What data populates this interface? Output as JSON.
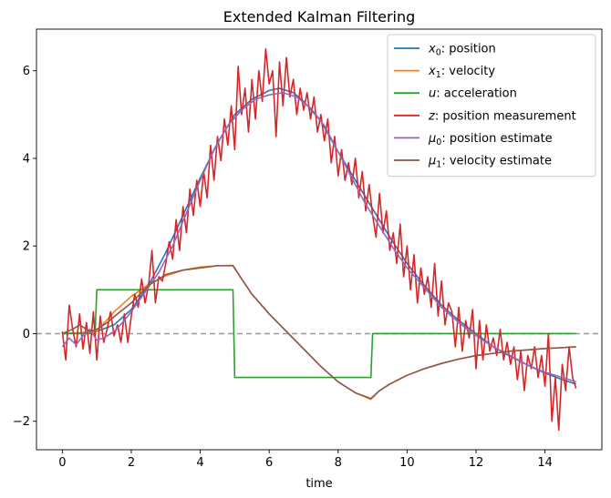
{
  "chart_data": {
    "type": "line",
    "title": "Extended Kalman Filtering",
    "xlabel": "time",
    "ylabel": "",
    "xlim": [
      -0.75,
      15.65
    ],
    "ylim": [
      -2.65,
      6.95
    ],
    "xticks": [
      0,
      2,
      4,
      6,
      8,
      10,
      12,
      14
    ],
    "yticks": [
      -2,
      0,
      2,
      4,
      6
    ],
    "xtick_labels": [
      "0",
      "2",
      "4",
      "6",
      "8",
      "10",
      "12",
      "14"
    ],
    "ytick_labels": [
      "−2",
      "0",
      "2",
      "4",
      "6"
    ],
    "reference_line": {
      "y": 0,
      "style": "dashed",
      "color": "#999999"
    },
    "legend_location": "upper right",
    "legend": [
      {
        "var": "x",
        "sub": "0",
        "text": ": position",
        "color": "#1f77b4"
      },
      {
        "var": "x",
        "sub": "1",
        "text": ": velocity",
        "color": "#ff7f0e"
      },
      {
        "var": "u",
        "sub": "",
        "text": ": acceleration",
        "color": "#2ca02c"
      },
      {
        "var": "z",
        "sub": "",
        "text": ": position measurement",
        "color": "#d62728"
      },
      {
        "var": "μ",
        "sub": "0",
        "text": ": position estimate",
        "color": "#9467bd"
      },
      {
        "var": "μ",
        "sub": "1",
        "text": ": velocity estimate",
        "color": "#8c564b"
      }
    ],
    "series": [
      {
        "id": "x0",
        "color": "#1f77b4",
        "points": [
          [
            0,
            0
          ],
          [
            0.5,
            0.02
          ],
          [
            1,
            0.05
          ],
          [
            1.5,
            0.2
          ],
          [
            2,
            0.55
          ],
          [
            2.5,
            1.1
          ],
          [
            3,
            1.85
          ],
          [
            3.5,
            2.7
          ],
          [
            4,
            3.55
          ],
          [
            4.5,
            4.35
          ],
          [
            5,
            5.0
          ],
          [
            5.5,
            5.35
          ],
          [
            6,
            5.55
          ],
          [
            6.3,
            5.6
          ],
          [
            6.7,
            5.5
          ],
          [
            7,
            5.3
          ],
          [
            7.5,
            4.85
          ],
          [
            8,
            4.15
          ],
          [
            8.5,
            3.5
          ],
          [
            9,
            2.85
          ],
          [
            9.5,
            2.2
          ],
          [
            10,
            1.6
          ],
          [
            10.5,
            1.1
          ],
          [
            11,
            0.65
          ],
          [
            11.5,
            0.3
          ],
          [
            12,
            0.0
          ],
          [
            12.5,
            -0.3
          ],
          [
            13,
            -0.52
          ],
          [
            13.5,
            -0.72
          ],
          [
            14,
            -0.9
          ],
          [
            14.5,
            -1.05
          ],
          [
            14.9,
            -1.15
          ]
        ]
      },
      {
        "id": "x1",
        "color": "#ff7f0e",
        "points": [
          [
            0,
            0
          ],
          [
            0.5,
            0.02
          ],
          [
            1,
            0.05
          ],
          [
            1.5,
            0.5
          ],
          [
            2,
            0.85
          ],
          [
            2.5,
            1.12
          ],
          [
            3,
            1.32
          ],
          [
            3.5,
            1.45
          ],
          [
            4,
            1.52
          ],
          [
            4.5,
            1.55
          ],
          [
            4.95,
            1.56
          ],
          [
            5.2,
            1.25
          ],
          [
            5.5,
            0.9
          ],
          [
            6,
            0.45
          ],
          [
            6.5,
            0.05
          ],
          [
            7,
            -0.35
          ],
          [
            7.5,
            -0.75
          ],
          [
            8,
            -1.1
          ],
          [
            8.5,
            -1.35
          ],
          [
            8.95,
            -1.5
          ],
          [
            9.2,
            -1.3
          ],
          [
            9.5,
            -1.15
          ],
          [
            10,
            -0.95
          ],
          [
            10.5,
            -0.8
          ],
          [
            11,
            -0.68
          ],
          [
            11.5,
            -0.58
          ],
          [
            12,
            -0.5
          ],
          [
            12.5,
            -0.45
          ],
          [
            13,
            -0.4
          ],
          [
            13.5,
            -0.37
          ],
          [
            14,
            -0.34
          ],
          [
            14.5,
            -0.32
          ],
          [
            14.9,
            -0.3
          ]
        ]
      },
      {
        "id": "u",
        "color": "#2ca02c",
        "points": [
          [
            0,
            0
          ],
          [
            0.95,
            0
          ],
          [
            1,
            1
          ],
          [
            4.95,
            1
          ],
          [
            5,
            -1
          ],
          [
            8.95,
            -1
          ],
          [
            9,
            0
          ],
          [
            14.9,
            0
          ]
        ]
      },
      {
        "id": "z",
        "color": "#d62728",
        "points": [
          [
            0,
            0.05
          ],
          [
            0.1,
            -0.6
          ],
          [
            0.2,
            0.65
          ],
          [
            0.3,
            0.1
          ],
          [
            0.4,
            -0.3
          ],
          [
            0.5,
            0.45
          ],
          [
            0.6,
            -0.35
          ],
          [
            0.7,
            0.25
          ],
          [
            0.8,
            -0.45
          ],
          [
            0.9,
            0.5
          ],
          [
            1.0,
            -0.6
          ],
          [
            1.1,
            0.4
          ],
          [
            1.2,
            -0.2
          ],
          [
            1.3,
            0.1
          ],
          [
            1.4,
            0.5
          ],
          [
            1.5,
            -0.05
          ],
          [
            1.6,
            0.2
          ],
          [
            1.7,
            -0.2
          ],
          [
            1.8,
            0.45
          ],
          [
            1.9,
            -0.2
          ],
          [
            2.0,
            0.4
          ],
          [
            2.1,
            0.9
          ],
          [
            2.2,
            0.6
          ],
          [
            2.3,
            1.25
          ],
          [
            2.4,
            0.7
          ],
          [
            2.5,
            1.1
          ],
          [
            2.6,
            1.9
          ],
          [
            2.7,
            0.7
          ],
          [
            2.8,
            1.3
          ],
          [
            2.9,
            1.2
          ],
          [
            3.0,
            1.6
          ],
          [
            3.1,
            2.1
          ],
          [
            3.2,
            1.7
          ],
          [
            3.3,
            2.6
          ],
          [
            3.4,
            1.9
          ],
          [
            3.5,
            2.9
          ],
          [
            3.6,
            2.3
          ],
          [
            3.7,
            3.3
          ],
          [
            3.8,
            2.7
          ],
          [
            3.9,
            3.5
          ],
          [
            4.0,
            2.9
          ],
          [
            4.1,
            3.7
          ],
          [
            4.2,
            3.1
          ],
          [
            4.3,
            4.3
          ],
          [
            4.4,
            3.5
          ],
          [
            4.5,
            4.5
          ],
          [
            4.6,
            3.95
          ],
          [
            4.7,
            4.9
          ],
          [
            4.8,
            4.3
          ],
          [
            4.9,
            5.2
          ],
          [
            5.0,
            4.2
          ],
          [
            5.1,
            6.1
          ],
          [
            5.2,
            5.0
          ],
          [
            5.3,
            5.6
          ],
          [
            5.4,
            4.6
          ],
          [
            5.5,
            5.8
          ],
          [
            5.6,
            4.9
          ],
          [
            5.7,
            6.0
          ],
          [
            5.8,
            5.3
          ],
          [
            5.9,
            6.5
          ],
          [
            6.0,
            5.7
          ],
          [
            6.1,
            6.0
          ],
          [
            6.2,
            4.5
          ],
          [
            6.3,
            6.2
          ],
          [
            6.4,
            5.2
          ],
          [
            6.5,
            6.3
          ],
          [
            6.6,
            5.4
          ],
          [
            6.7,
            5.8
          ],
          [
            6.8,
            5.0
          ],
          [
            6.9,
            5.6
          ],
          [
            7.0,
            5.1
          ],
          [
            7.1,
            5.5
          ],
          [
            7.2,
            4.9
          ],
          [
            7.3,
            5.4
          ],
          [
            7.4,
            4.6
          ],
          [
            7.5,
            5.0
          ],
          [
            7.6,
            4.4
          ],
          [
            7.7,
            4.9
          ],
          [
            7.8,
            3.9
          ],
          [
            7.9,
            4.5
          ],
          [
            8.0,
            3.6
          ],
          [
            8.1,
            4.2
          ],
          [
            8.2,
            3.5
          ],
          [
            8.3,
            3.9
          ],
          [
            8.4,
            3.4
          ],
          [
            8.5,
            4.0
          ],
          [
            8.6,
            3.1
          ],
          [
            8.7,
            3.7
          ],
          [
            8.8,
            2.8
          ],
          [
            8.9,
            3.4
          ],
          [
            9.0,
            2.7
          ],
          [
            9.1,
            2.2
          ],
          [
            9.2,
            3.2
          ],
          [
            9.3,
            2.3
          ],
          [
            9.4,
            2.8
          ],
          [
            9.5,
            1.9
          ],
          [
            9.6,
            2.3
          ],
          [
            9.7,
            1.6
          ],
          [
            9.8,
            2.5
          ],
          [
            9.9,
            1.3
          ],
          [
            10.0,
            2.0
          ],
          [
            10.1,
            1.0
          ],
          [
            10.2,
            1.8
          ],
          [
            10.3,
            0.7
          ],
          [
            10.4,
            1.5
          ],
          [
            10.5,
            0.9
          ],
          [
            10.6,
            1.3
          ],
          [
            10.7,
            0.6
          ],
          [
            10.8,
            1.6
          ],
          [
            10.9,
            0.4
          ],
          [
            11.0,
            1.2
          ],
          [
            11.1,
            0.2
          ],
          [
            11.2,
            0.7
          ],
          [
            11.3,
            0.5
          ],
          [
            11.4,
            -0.3
          ],
          [
            11.5,
            0.6
          ],
          [
            11.6,
            -0.4
          ],
          [
            11.7,
            0.3
          ],
          [
            11.8,
            -0.1
          ],
          [
            11.9,
            0.55
          ],
          [
            12.0,
            -0.8
          ],
          [
            12.1,
            0.3
          ],
          [
            12.2,
            -0.6
          ],
          [
            12.3,
            0.2
          ],
          [
            12.4,
            -0.4
          ],
          [
            12.5,
            -0.1
          ],
          [
            12.6,
            -0.5
          ],
          [
            12.7,
            0.1
          ],
          [
            12.8,
            -0.6
          ],
          [
            12.9,
            -0.2
          ],
          [
            13.0,
            -0.7
          ],
          [
            13.1,
            -0.3
          ],
          [
            13.2,
            -1.05
          ],
          [
            13.3,
            -0.4
          ],
          [
            13.4,
            -1.3
          ],
          [
            13.5,
            -0.5
          ],
          [
            13.6,
            -0.8
          ],
          [
            13.7,
            -0.3
          ],
          [
            13.8,
            -1.0
          ],
          [
            13.9,
            -0.5
          ],
          [
            14.0,
            -1.2
          ],
          [
            14.1,
            0.0
          ],
          [
            14.2,
            -2.0
          ],
          [
            14.3,
            -1.0
          ],
          [
            14.4,
            -2.2
          ],
          [
            14.5,
            -0.7
          ],
          [
            14.6,
            -1.3
          ],
          [
            14.7,
            -0.3
          ],
          [
            14.8,
            -1.0
          ],
          [
            14.9,
            -1.25
          ]
        ]
      },
      {
        "id": "mu0",
        "color": "#9467bd",
        "points": [
          [
            0,
            -0.3
          ],
          [
            0.2,
            -0.1
          ],
          [
            0.4,
            -0.25
          ],
          [
            0.6,
            -0.05
          ],
          [
            0.8,
            0.1
          ],
          [
            1.0,
            -0.15
          ],
          [
            1.2,
            -0.1
          ],
          [
            1.5,
            0.05
          ],
          [
            1.8,
            0.3
          ],
          [
            2.0,
            0.5
          ],
          [
            2.4,
            0.95
          ],
          [
            2.8,
            1.4
          ],
          [
            3.2,
            2.0
          ],
          [
            3.6,
            2.75
          ],
          [
            4.0,
            3.5
          ],
          [
            4.4,
            4.2
          ],
          [
            4.8,
            4.75
          ],
          [
            5.2,
            5.1
          ],
          [
            5.6,
            5.35
          ],
          [
            6.0,
            5.45
          ],
          [
            6.4,
            5.5
          ],
          [
            6.8,
            5.4
          ],
          [
            7.2,
            5.15
          ],
          [
            7.6,
            4.75
          ],
          [
            8.0,
            4.15
          ],
          [
            8.4,
            3.55
          ],
          [
            8.8,
            2.95
          ],
          [
            9.2,
            2.45
          ],
          [
            9.6,
            1.95
          ],
          [
            10.0,
            1.5
          ],
          [
            10.5,
            1.05
          ],
          [
            11.0,
            0.6
          ],
          [
            11.5,
            0.25
          ],
          [
            12.0,
            -0.05
          ],
          [
            12.5,
            -0.3
          ],
          [
            13.0,
            -0.5
          ],
          [
            13.5,
            -0.72
          ],
          [
            14.0,
            -0.88
          ],
          [
            14.5,
            -1.0
          ],
          [
            14.9,
            -1.1
          ]
        ]
      },
      {
        "id": "mu1",
        "color": "#8c564b",
        "points": [
          [
            0,
            0.0
          ],
          [
            0.3,
            0.1
          ],
          [
            0.5,
            0.2
          ],
          [
            0.8,
            0.05
          ],
          [
            1.0,
            0.1
          ],
          [
            1.3,
            0.25
          ],
          [
            1.6,
            0.45
          ],
          [
            2.0,
            0.7
          ],
          [
            2.5,
            1.1
          ],
          [
            3.0,
            1.35
          ],
          [
            3.5,
            1.45
          ],
          [
            4.0,
            1.5
          ],
          [
            4.5,
            1.55
          ],
          [
            4.95,
            1.55
          ],
          [
            5.2,
            1.25
          ],
          [
            5.5,
            0.9
          ],
          [
            6.0,
            0.45
          ],
          [
            6.5,
            0.05
          ],
          [
            7.0,
            -0.35
          ],
          [
            7.5,
            -0.75
          ],
          [
            8.0,
            -1.1
          ],
          [
            8.5,
            -1.35
          ],
          [
            8.95,
            -1.48
          ],
          [
            9.2,
            -1.3
          ],
          [
            9.5,
            -1.15
          ],
          [
            10.0,
            -0.95
          ],
          [
            10.5,
            -0.8
          ],
          [
            11.0,
            -0.68
          ],
          [
            11.5,
            -0.58
          ],
          [
            12.0,
            -0.5
          ],
          [
            12.5,
            -0.45
          ],
          [
            13.0,
            -0.4
          ],
          [
            13.5,
            -0.37
          ],
          [
            14.0,
            -0.34
          ],
          [
            14.5,
            -0.32
          ],
          [
            14.9,
            -0.3
          ]
        ]
      }
    ]
  }
}
